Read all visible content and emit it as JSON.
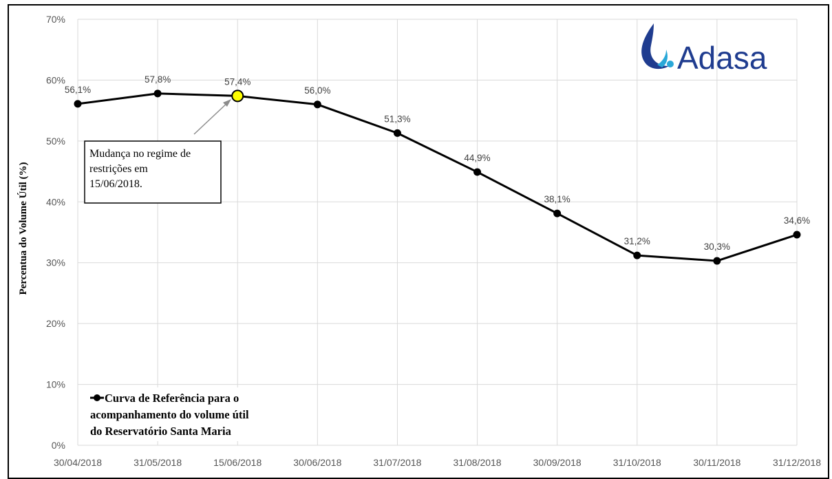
{
  "chart_data": {
    "type": "line",
    "ylabel": "Percentua do Volume Útil (%)",
    "ylim": [
      0,
      70
    ],
    "y_ticks": [
      "0%",
      "10%",
      "20%",
      "30%",
      "40%",
      "50%",
      "60%",
      "70%"
    ],
    "categories": [
      "30/04/2018",
      "31/05/2018",
      "15/06/2018",
      "30/06/2018",
      "31/07/2018",
      "31/08/2018",
      "30/09/2018",
      "31/10/2018",
      "30/11/2018",
      "31/12/2018"
    ],
    "series": [
      {
        "name": "Curva de Referência para o acompanhamento do volume útil do Reservatório Santa Maria",
        "values": [
          56.1,
          57.8,
          57.4,
          56.0,
          51.3,
          44.9,
          38.1,
          31.2,
          30.3,
          34.6
        ],
        "data_labels": [
          "56,1%",
          "57,8%",
          "57,4%",
          "56,0%",
          "51,3%",
          "44,9%",
          "38,1%",
          "31,2%",
          "30,3%",
          "34,6%"
        ],
        "color": "#000000"
      }
    ],
    "highlight_index": 2,
    "highlight_color": "#ffff00",
    "grid": true,
    "legend": {
      "placement": "bottom-left",
      "lines": [
        "Curva de Referência para o",
        "acompanhamento do volume útil",
        "do Reservatório Santa Maria"
      ]
    },
    "annotation": {
      "lines": [
        "Mudança no regime de",
        "restrições em",
        "15/06/2018."
      ],
      "points_to_index": 2
    }
  },
  "logo": {
    "text": "Adasa",
    "text_color": "#1f3c8f",
    "drop_color": "#1f3c8f",
    "accent_color": "#2aa8d8"
  }
}
